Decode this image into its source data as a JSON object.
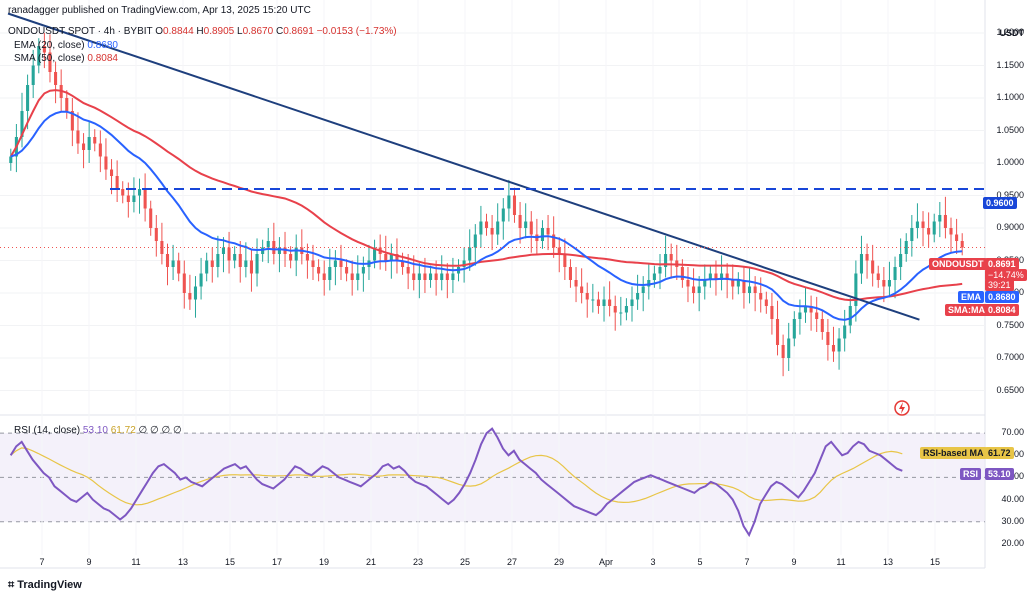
{
  "publisher": "ranadagger published on TradingView.com, Apr 13, 2025 15:20 UTC",
  "symbol_line": {
    "symbol": "ONDOUSDT SPOT · 4h · BYBIT",
    "open_label": "O",
    "open": "0.8844",
    "high_label": "H",
    "high": "0.8905",
    "low_label": "L",
    "low": "0.8670",
    "close_label": "C",
    "close": "0.8691",
    "change": "−0.0153 (−1.73%)"
  },
  "ema_line": {
    "label": "EMA (20, close)",
    "value": "0.8680"
  },
  "sma_line": {
    "label": "SMA (50, close)",
    "value": "0.8084"
  },
  "rsi_line": {
    "label": "RSI (14, close)",
    "value": "53.10",
    "ma": "61.72",
    "rest": "∅ ∅ ∅ ∅"
  },
  "currency": "USDT",
  "price_axis": [
    "1.2000",
    "1.1500",
    "1.1000",
    "1.0500",
    "1.0000",
    "0.9500",
    "0.9000",
    "0.8500",
    "0.8000",
    "0.7500",
    "0.7000",
    "0.6500"
  ],
  "rsi_axis": [
    "70.00",
    "60.00",
    "50.00",
    "40.00",
    "30.00",
    "20.00"
  ],
  "x_axis": [
    "7",
    "9",
    "11",
    "13",
    "15",
    "17",
    "19",
    "21",
    "23",
    "25",
    "27",
    "29",
    "Apr",
    "3",
    "5",
    "7",
    "9",
    "11",
    "13",
    "15"
  ],
  "tags": {
    "resistance": "0.9600",
    "symbol": "ONDOUSDT",
    "last": "0.8691",
    "change": "−14.74%",
    "countdown": "39:21",
    "ema": "EMA",
    "ema_value": "0.8680",
    "sma": "SMA:MA",
    "sma_value": "0.8084",
    "rsi_ma": "RSI-based MA",
    "rsi_ma_value": "61.72",
    "rsi": "RSI",
    "rsi_value": "53.10"
  },
  "brand": "TradingView",
  "colors": {
    "up": "#26a69a",
    "down": "#ef5350",
    "ema": "#2962ff",
    "sma": "#e8414b",
    "trend": "#1e3f7d",
    "rsi": "#7e57c2",
    "rsi_ma": "#e8c547"
  },
  "chart_data": {
    "type": "candlestick",
    "title": "ONDOUSDT SPOT · 4h · BYBIT",
    "price_range": [
      0.62,
      1.22
    ],
    "resistance": 0.96,
    "trendline": [
      {
        "x": 0,
        "y": 1.23
      },
      {
        "x": 200,
        "y": 0.759
      }
    ],
    "x_range": [
      0,
      210
    ],
    "closes": [
      1.01,
      1.04,
      1.08,
      1.12,
      1.15,
      1.18,
      1.17,
      1.14,
      1.12,
      1.1,
      1.08,
      1.05,
      1.03,
      1.02,
      1.04,
      1.03,
      1.01,
      0.99,
      0.98,
      0.96,
      0.95,
      0.94,
      0.95,
      0.96,
      0.93,
      0.9,
      0.88,
      0.86,
      0.84,
      0.85,
      0.83,
      0.8,
      0.79,
      0.81,
      0.83,
      0.85,
      0.84,
      0.86,
      0.87,
      0.85,
      0.86,
      0.84,
      0.85,
      0.83,
      0.86,
      0.87,
      0.88,
      0.86,
      0.87,
      0.86,
      0.85,
      0.87,
      0.86,
      0.85,
      0.84,
      0.83,
      0.82,
      0.84,
      0.85,
      0.84,
      0.83,
      0.82,
      0.83,
      0.84,
      0.85,
      0.87,
      0.86,
      0.85,
      0.86,
      0.85,
      0.84,
      0.83,
      0.82,
      0.83,
      0.82,
      0.83,
      0.82,
      0.83,
      0.82,
      0.83,
      0.84,
      0.85,
      0.87,
      0.89,
      0.91,
      0.9,
      0.89,
      0.91,
      0.93,
      0.95,
      0.92,
      0.9,
      0.91,
      0.89,
      0.88,
      0.9,
      0.89,
      0.87,
      0.86,
      0.84,
      0.82,
      0.81,
      0.8,
      0.79,
      0.79,
      0.78,
      0.79,
      0.78,
      0.77,
      0.77,
      0.78,
      0.79,
      0.8,
      0.81,
      0.82,
      0.83,
      0.84,
      0.86,
      0.85,
      0.84,
      0.82,
      0.81,
      0.8,
      0.81,
      0.82,
      0.83,
      0.82,
      0.83,
      0.82,
      0.81,
      0.82,
      0.8,
      0.81,
      0.8,
      0.79,
      0.78,
      0.76,
      0.72,
      0.7,
      0.73,
      0.76,
      0.77,
      0.78,
      0.77,
      0.76,
      0.74,
      0.72,
      0.71,
      0.73,
      0.75,
      0.78,
      0.83,
      0.86,
      0.85,
      0.83,
      0.82,
      0.81,
      0.82,
      0.84,
      0.86,
      0.88,
      0.9,
      0.91,
      0.9,
      0.89,
      0.91,
      0.92,
      0.9,
      0.89,
      0.88,
      0.87
    ],
    "rsi": {
      "values": [
        60,
        64,
        66,
        62,
        58,
        55,
        52,
        50,
        46,
        44,
        42,
        40,
        39,
        41,
        43,
        40,
        38,
        36,
        35,
        33,
        31,
        33,
        36,
        40,
        44,
        48,
        52,
        55,
        56,
        54,
        52,
        49,
        50,
        48,
        47,
        46,
        48,
        50,
        52,
        54,
        55,
        56,
        54,
        55,
        52,
        49,
        47,
        46,
        45,
        47,
        49,
        52,
        55,
        54,
        52,
        51,
        53,
        55,
        54,
        52,
        50,
        49,
        48,
        47,
        46,
        48,
        50,
        52,
        55,
        56,
        54,
        55,
        53,
        50,
        48,
        47,
        46,
        44,
        42,
        40,
        38,
        40,
        43,
        47,
        52,
        58,
        65,
        70,
        72,
        68,
        63,
        60,
        62,
        58,
        56,
        54,
        52,
        49,
        47,
        45,
        43,
        41,
        39,
        37,
        36,
        35,
        34,
        33,
        35,
        38,
        40,
        42,
        44,
        46,
        48,
        49,
        50,
        51,
        50,
        49,
        48,
        47,
        46,
        45,
        44,
        43,
        45,
        46,
        48,
        47,
        45,
        43,
        40,
        35,
        28,
        24,
        30,
        38,
        42,
        46,
        48,
        47,
        45,
        43,
        41,
        44,
        48,
        52,
        58,
        64,
        66,
        63,
        60,
        61,
        64,
        66,
        65,
        62,
        61,
        60,
        58,
        56,
        54,
        53
      ],
      "ma": 61.72,
      "last": 53.1,
      "range": [
        15,
        75
      ],
      "bands": [
        30,
        50,
        70
      ]
    }
  }
}
